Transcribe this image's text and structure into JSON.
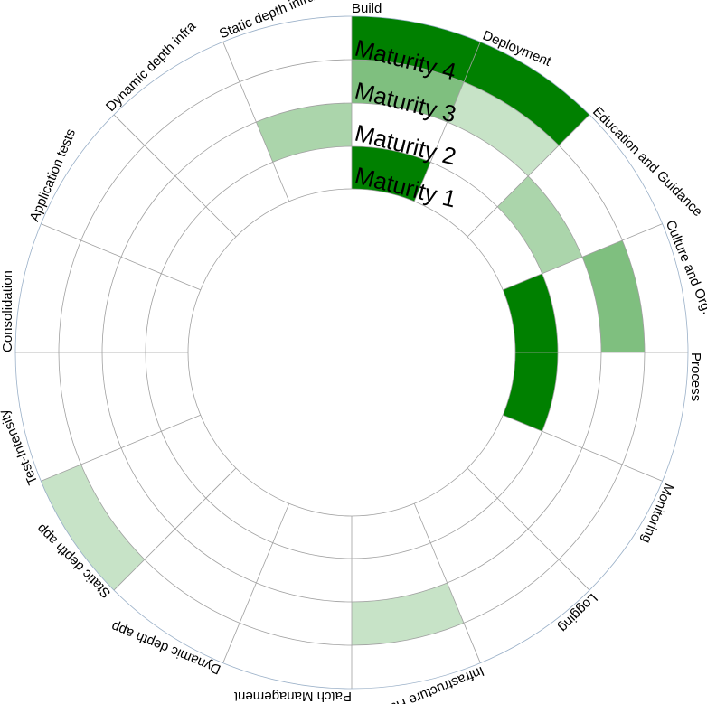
{
  "chart_data": {
    "type": "radial-heatmap",
    "title": "",
    "maturity_labels": [
      "Maturity 1",
      "Maturity 2",
      "Maturity 3",
      "Maturity 4"
    ],
    "fill_color": "#008000",
    "grid_color": "#a0a0a0",
    "sectors": [
      {
        "label": "Build",
        "levels": [
          1,
          0,
          0.5,
          1
        ]
      },
      {
        "label": "Deployment",
        "levels": [
          0,
          0,
          0.22,
          1
        ]
      },
      {
        "label": "Education and Guidance",
        "levels": [
          0,
          0.33,
          0,
          0
        ]
      },
      {
        "label": "Culture and Org.",
        "levels": [
          1,
          0,
          0.5,
          0
        ]
      },
      {
        "label": "Process",
        "levels": [
          1,
          0,
          0,
          0
        ]
      },
      {
        "label": "Monitoring",
        "levels": [
          0,
          0,
          0,
          0
        ]
      },
      {
        "label": "Logging",
        "levels": [
          0,
          0,
          0,
          0
        ]
      },
      {
        "label": "Infrastructure Hardening",
        "levels": [
          0,
          0,
          0.22,
          0
        ]
      },
      {
        "label": "Patch Management",
        "levels": [
          0,
          0,
          0,
          0
        ]
      },
      {
        "label": "Dynamic depth app",
        "levels": [
          0,
          0,
          0,
          0
        ]
      },
      {
        "label": "Static depth app",
        "levels": [
          0,
          0,
          0,
          0.22
        ]
      },
      {
        "label": "Test-Intensity",
        "levels": [
          0,
          0,
          0,
          0
        ]
      },
      {
        "label": "Consolidation",
        "levels": [
          0,
          0,
          0,
          0
        ]
      },
      {
        "label": "Application tests",
        "levels": [
          0,
          0,
          0,
          0
        ]
      },
      {
        "label": "Dynamic depth infra",
        "levels": [
          0,
          0,
          0,
          0
        ]
      },
      {
        "label": "Static depth infra",
        "levels": [
          0,
          0.33,
          0,
          0
        ]
      }
    ]
  }
}
